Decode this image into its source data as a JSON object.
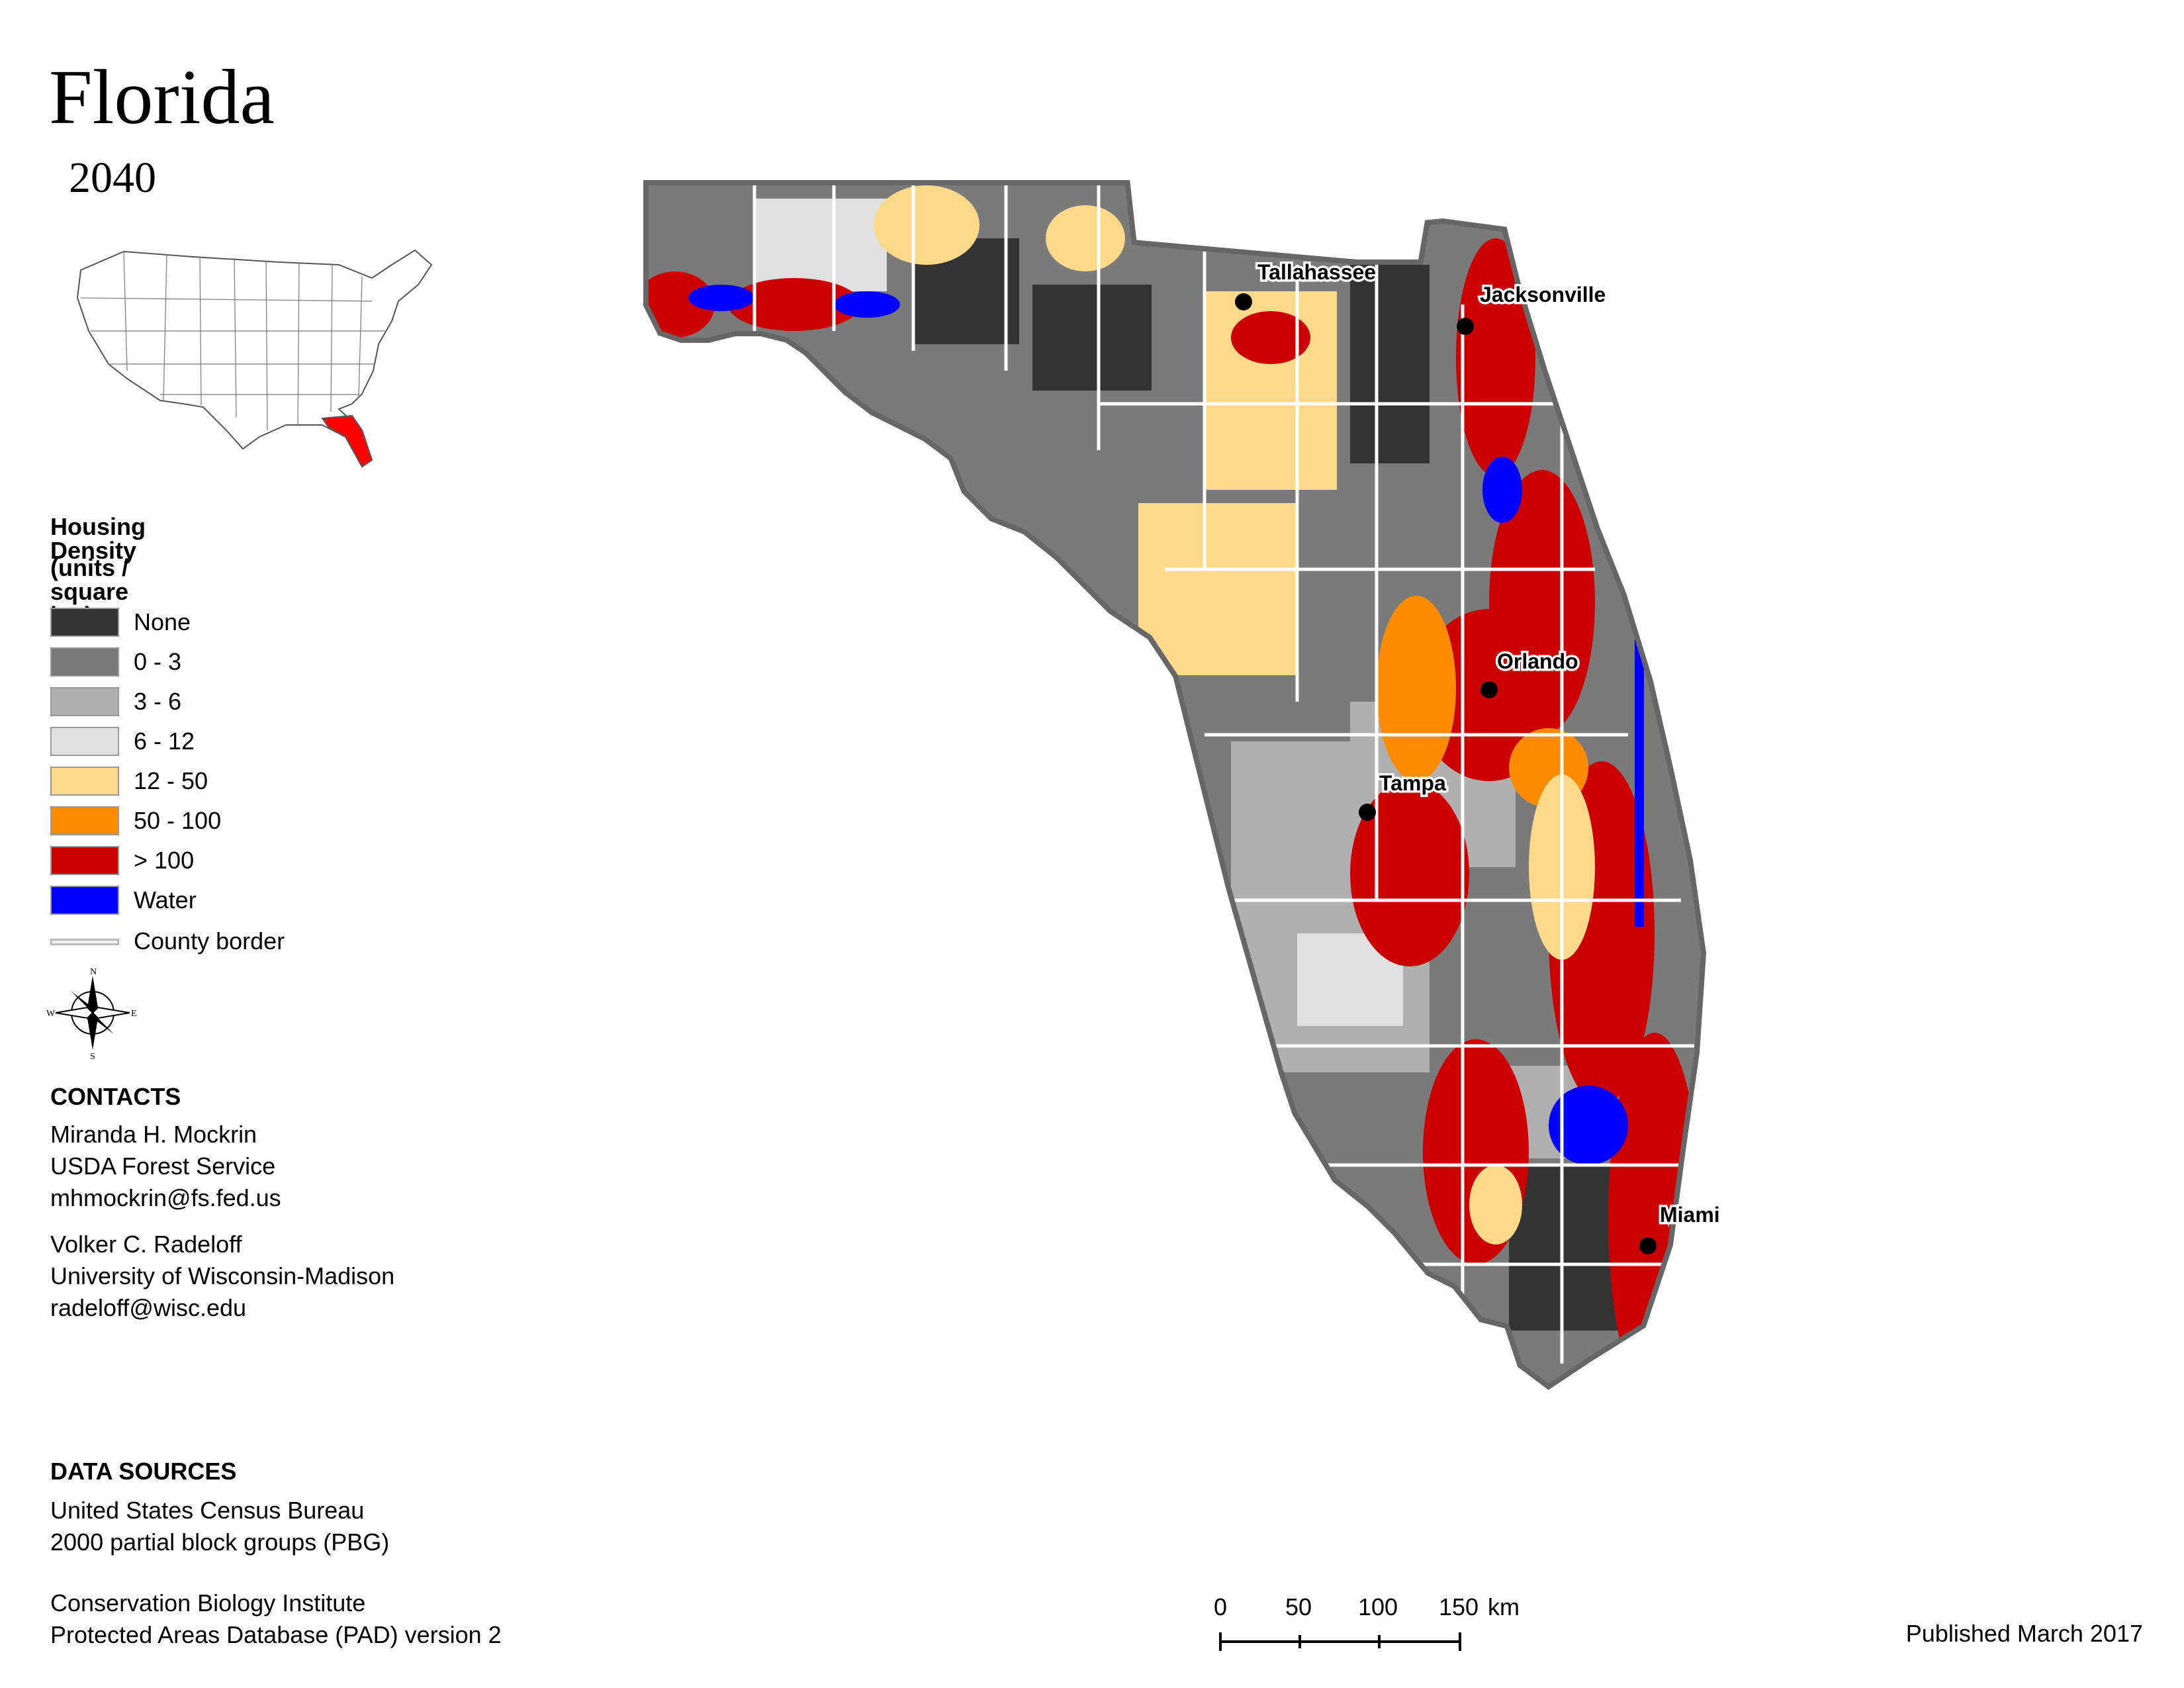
{
  "title": "Florida",
  "subtitle": "2040",
  "legend": {
    "heading": "Housing Density",
    "units": "(units / square km)",
    "items": [
      {
        "label": "None",
        "color": "#333333"
      },
      {
        "label": "0 - 3",
        "color": "#7a7a7a"
      },
      {
        "label": "3 - 6",
        "color": "#b0b0b0"
      },
      {
        "label": "6 - 12",
        "color": "#e0e0e0"
      },
      {
        "label": "12 - 50",
        "color": "#ffd98a"
      },
      {
        "label": "50 - 100",
        "color": "#ff8c00"
      },
      {
        "label": "> 100",
        "color": "#cc0000"
      },
      {
        "label": "Water",
        "color": "#0000ff"
      }
    ],
    "county_border_label": "County border"
  },
  "compass": {
    "n": "N",
    "s": "S",
    "e": "E",
    "w": "W"
  },
  "contacts": {
    "heading": "CONTACTS",
    "people": [
      {
        "name": "Miranda H. Mockrin",
        "org": "USDA Forest Service",
        "email": "mhmockrin@fs.fed.us"
      },
      {
        "name": "Volker C. Radeloff",
        "org": "University of Wisconsin-Madison",
        "email": "radeloff@wisc.edu"
      }
    ]
  },
  "data_sources": {
    "heading": "DATA SOURCES",
    "lines_a": [
      "United States Census Bureau",
      "2000 partial block groups (PBG)"
    ],
    "lines_b": [
      "Conservation Biology Institute",
      "Protected Areas Database (PAD) version 2"
    ]
  },
  "scale_bar": {
    "ticks": [
      "0",
      "50",
      "100",
      "150"
    ],
    "unit": "km"
  },
  "cities": [
    "Tallahassee",
    "Jacksonville",
    "Orlando",
    "Tampa",
    "Miami"
  ],
  "published": "Published March 2017"
}
